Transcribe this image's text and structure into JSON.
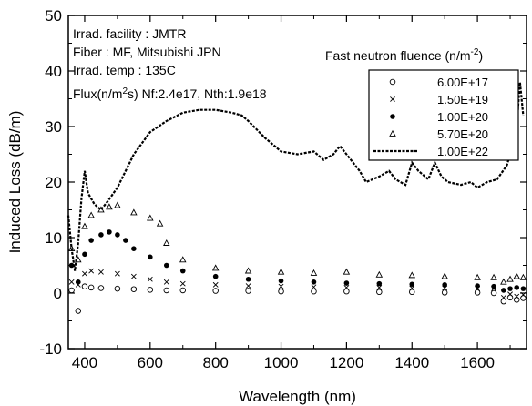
{
  "chart_data": {
    "type": "line",
    "xlabel": "Wavelength (nm)",
    "ylabel": "Induced Loss (dB/m)",
    "xlim": [
      350,
      1750
    ],
    "ylim": [
      -10,
      50
    ],
    "xticks": [
      400,
      600,
      800,
      1000,
      1200,
      1400,
      1600
    ],
    "yticks": [
      -10,
      0,
      10,
      20,
      30,
      40,
      50
    ],
    "xtick_labels": [
      "400",
      "600",
      "800",
      "1000",
      "1200",
      "1400",
      "1600"
    ],
    "ytick_labels": [
      "-10",
      "0",
      "10",
      "20",
      "30",
      "40",
      "50"
    ],
    "grid": false,
    "legend_title": "Fast neutron fluence (n/m",
    "legend_title_sup": "-2",
    "legend_title_end": ")",
    "legend_position": "top-right",
    "annotations": [
      "Irrad. facility : JMTR",
      "Fiber : MF, Mitsubishi JPN",
      "Irrad. temp : 135C"
    ],
    "flux_note": {
      "prefix": "Flux(n/m",
      "sup": "2",
      "suffix": "s) Nf:2.4e17, Nth:1.9e18"
    },
    "series": [
      {
        "name": "6.00E+17",
        "marker": "open-circle",
        "x": [
          360,
          380,
          400,
          420,
          450,
          500,
          550,
          600,
          650,
          700,
          800,
          900,
          1000,
          1100,
          1200,
          1300,
          1400,
          1500,
          1600,
          1650,
          1680,
          1700,
          1720,
          1740
        ],
        "y": [
          0.5,
          -3.2,
          1.2,
          1.0,
          0.9,
          0.8,
          0.7,
          0.6,
          0.5,
          0.5,
          0.4,
          0.4,
          0.3,
          0.3,
          0.3,
          0.2,
          0.2,
          0.1,
          0.1,
          0.0,
          -1.5,
          -0.8,
          -1.2,
          -0.9
        ]
      },
      {
        "name": "1.50E+19",
        "marker": "cross",
        "x": [
          360,
          380,
          400,
          420,
          450,
          500,
          550,
          600,
          650,
          700,
          800,
          900,
          1000,
          1100,
          1200,
          1300,
          1400,
          1500,
          1600,
          1650,
          1680,
          1700,
          1720,
          1740
        ],
        "y": [
          2.0,
          1.5,
          3.5,
          4.0,
          3.8,
          3.5,
          3.0,
          2.5,
          2.0,
          1.7,
          1.5,
          1.3,
          1.2,
          1.1,
          1.0,
          1.0,
          0.9,
          0.9,
          0.8,
          0.8,
          -0.8,
          -0.2,
          -0.6,
          -0.3
        ]
      },
      {
        "name": "1.00E+20",
        "marker": "filled-circle",
        "x": [
          360,
          380,
          400,
          420,
          450,
          475,
          500,
          525,
          550,
          600,
          650,
          700,
          800,
          900,
          1000,
          1100,
          1200,
          1300,
          1400,
          1500,
          1600,
          1650,
          1680,
          1700,
          1720,
          1740
        ],
        "y": [
          5.0,
          2.0,
          7.0,
          9.5,
          10.5,
          11.0,
          10.5,
          9.5,
          8.0,
          6.5,
          5.0,
          4.0,
          3.0,
          2.5,
          2.2,
          2.0,
          1.8,
          1.7,
          1.6,
          1.5,
          1.3,
          1.2,
          0.5,
          0.8,
          1.0,
          0.8
        ]
      },
      {
        "name": "5.70E+20",
        "marker": "open-triangle",
        "x": [
          360,
          380,
          400,
          420,
          450,
          475,
          500,
          550,
          600,
          630,
          650,
          700,
          800,
          900,
          1000,
          1100,
          1200,
          1300,
          1400,
          1500,
          1600,
          1650,
          1680,
          1700,
          1720,
          1740
        ],
        "y": [
          8.0,
          6.0,
          12.0,
          14.0,
          15.0,
          15.5,
          15.8,
          14.5,
          13.5,
          12.5,
          9.0,
          6.0,
          4.5,
          4.0,
          3.8,
          3.6,
          3.8,
          3.3,
          3.2,
          3.0,
          2.8,
          2.8,
          2.0,
          2.5,
          3.0,
          2.8
        ]
      },
      {
        "name": "1.00E+22",
        "marker": "dashed-line",
        "x": [
          350,
          360,
          370,
          380,
          390,
          400,
          410,
          420,
          430,
          450,
          470,
          500,
          550,
          600,
          650,
          700,
          750,
          800,
          850,
          880,
          900,
          950,
          1000,
          1050,
          1100,
          1130,
          1160,
          1180,
          1200,
          1240,
          1260,
          1300,
          1330,
          1350,
          1380,
          1400,
          1420,
          1450,
          1470,
          1490,
          1510,
          1550,
          1580,
          1600,
          1630,
          1660,
          1690,
          1710,
          1720,
          1730,
          1740
        ],
        "y": [
          14.0,
          8.0,
          4.0,
          9.0,
          17.0,
          22.0,
          18.0,
          17.0,
          16.0,
          15.0,
          16.5,
          19.0,
          25.0,
          29.0,
          31.0,
          32.5,
          33.0,
          33.0,
          32.5,
          32.0,
          31.0,
          28.0,
          25.5,
          25.0,
          25.5,
          24.0,
          25.0,
          26.5,
          25.0,
          22.0,
          20.0,
          21.0,
          22.0,
          20.5,
          19.5,
          23.5,
          22.0,
          20.5,
          23.5,
          21.0,
          20.0,
          19.5,
          20.0,
          19.0,
          20.0,
          20.5,
          23.0,
          27.0,
          30.0,
          38.0,
          32.0
        ]
      }
    ]
  }
}
